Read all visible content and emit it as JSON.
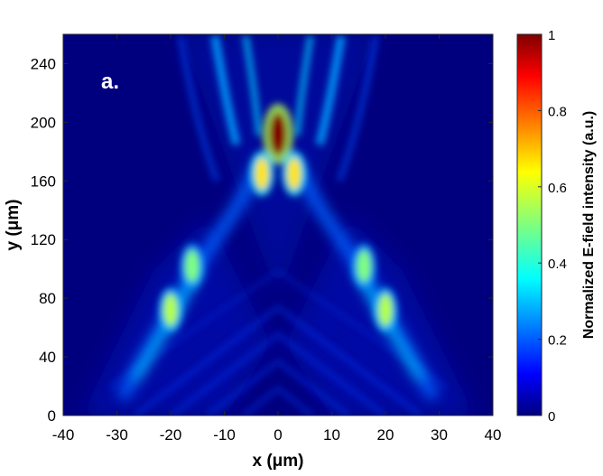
{
  "chart_data": {
    "type": "heatmap",
    "panel_label": "a.",
    "xlabel": "x (μm)",
    "ylabel": "y (μm)",
    "xlim": [
      -40,
      40
    ],
    "ylim": [
      0,
      260
    ],
    "x_ticks": [
      -40,
      -30,
      -20,
      -10,
      0,
      10,
      20,
      30,
      40
    ],
    "y_ticks": [
      0,
      40,
      80,
      120,
      160,
      200,
      240
    ],
    "colorbar": {
      "label": "Normalized E-field intensity (a.u.)",
      "range": [
        0,
        1
      ],
      "ticks": [
        0,
        0.2,
        0.4,
        0.6,
        0.8,
        1
      ],
      "colormap": "jet"
    },
    "features": [
      {
        "name": "focal-spot",
        "x": 0,
        "y": 192,
        "intensity": 1.0
      },
      {
        "name": "left-side-lobe",
        "x": -3,
        "y": 165,
        "intensity": 0.65
      },
      {
        "name": "right-side-lobe",
        "x": 3,
        "y": 165,
        "intensity": 0.65
      },
      {
        "name": "left-beam-spot-1",
        "x": -20,
        "y": 72,
        "intensity": 0.55
      },
      {
        "name": "left-beam-spot-2",
        "x": -16,
        "y": 102,
        "intensity": 0.5
      },
      {
        "name": "right-beam-spot-1",
        "x": 20,
        "y": 72,
        "intensity": 0.55
      },
      {
        "name": "right-beam-spot-2",
        "x": 16,
        "y": 102,
        "intensity": 0.5
      }
    ]
  },
  "colors": {
    "background_dark_blue": "#00007f",
    "colormap_stops": [
      "#00007f",
      "#0000ff",
      "#007fff",
      "#00ffff",
      "#7fff7f",
      "#ffff00",
      "#ff7f00",
      "#ff0000",
      "#7f0000"
    ]
  }
}
